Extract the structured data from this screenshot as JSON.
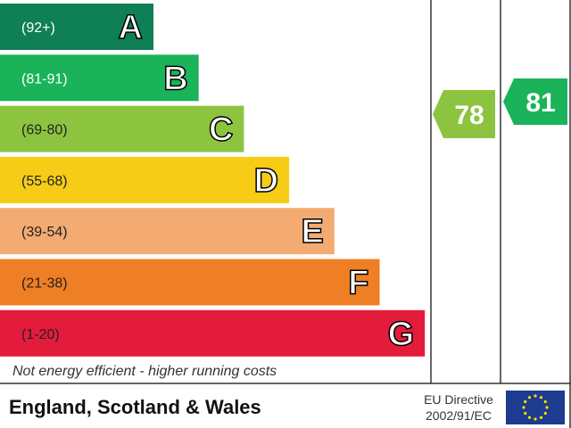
{
  "bands": [
    {
      "range": "(92+)",
      "letter": "A",
      "color": "#0f7f56"
    },
    {
      "range": "(81-91)",
      "letter": "B",
      "color": "#1bb35a"
    },
    {
      "range": "(69-80)",
      "letter": "C",
      "color": "#8cc43f"
    },
    {
      "range": "(55-68)",
      "letter": "D",
      "color": "#f6cc17"
    },
    {
      "range": "(39-54)",
      "letter": "E",
      "color": "#f3ab71"
    },
    {
      "range": "(21-38)",
      "letter": "F",
      "color": "#ee7f24"
    },
    {
      "range": "(1-20)",
      "letter": "G",
      "color": "#e31c3c"
    }
  ],
  "footer_note": "Not energy efficient - higher running costs",
  "current": {
    "value": 78,
    "color": "#8cc43f"
  },
  "potential": {
    "value": 81,
    "color": "#1bb35a"
  },
  "region": "England, Scotland & Wales",
  "directive": {
    "line1": "EU Directive",
    "line2": "2002/91/EC"
  }
}
